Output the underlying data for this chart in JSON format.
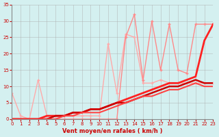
{
  "xlabel": "Vent moyen/en rafales ( km/h )",
  "background_color": "#d4f0f0",
  "grid_color": "#aaaaaa",
  "xlim": [
    0,
    23
  ],
  "ylim": [
    0,
    35
  ],
  "xticks": [
    0,
    1,
    2,
    3,
    4,
    5,
    6,
    7,
    8,
    9,
    10,
    11,
    12,
    13,
    14,
    15,
    16,
    17,
    18,
    19,
    20,
    21,
    22,
    23
  ],
  "yticks": [
    0,
    5,
    10,
    15,
    20,
    25,
    30,
    35
  ],
  "x": [
    0,
    1,
    2,
    3,
    4,
    5,
    6,
    7,
    8,
    9,
    10,
    11,
    12,
    13,
    14,
    15,
    16,
    17,
    18,
    19,
    20,
    21,
    22,
    23
  ],
  "lines": [
    {
      "y": [
        8,
        1,
        0,
        12,
        1,
        1,
        1,
        1,
        1,
        1,
        1,
        23,
        8,
        26,
        25,
        11,
        11,
        12,
        11,
        11,
        11,
        11,
        11,
        11
      ],
      "color": "#ffaaaa",
      "lw": 1.0,
      "marker": "+",
      "ms": 3
    },
    {
      "y": [
        0,
        0,
        0,
        0,
        0,
        0,
        0,
        0,
        0,
        0,
        0,
        0,
        0,
        25,
        32,
        12,
        30,
        15,
        29,
        15,
        14,
        29,
        29,
        29
      ],
      "color": "#ff8888",
      "lw": 1.0,
      "marker": "+",
      "ms": 3
    },
    {
      "y": [
        0,
        0,
        0,
        0,
        1,
        1,
        1,
        2,
        2,
        3,
        3,
        4,
        5,
        6,
        7,
        8,
        9,
        10,
        11,
        11,
        12,
        13,
        24,
        29
      ],
      "color": "#ff2222",
      "lw": 2.0,
      "marker": null,
      "ms": 0
    },
    {
      "y": [
        0,
        0,
        0,
        0,
        0,
        1,
        1,
        2,
        2,
        3,
        3,
        4,
        5,
        5,
        6,
        7,
        8,
        9,
        10,
        10,
        11,
        12,
        11,
        11
      ],
      "color": "#cc0000",
      "lw": 1.8,
      "marker": null,
      "ms": 0
    },
    {
      "y": [
        0,
        0,
        0,
        0,
        0,
        0,
        1,
        1,
        2,
        2,
        2,
        3,
        4,
        5,
        6,
        7,
        7,
        8,
        9,
        9,
        10,
        11,
        10,
        10
      ],
      "color": "#ff4444",
      "lw": 1.5,
      "marker": null,
      "ms": 0
    }
  ]
}
